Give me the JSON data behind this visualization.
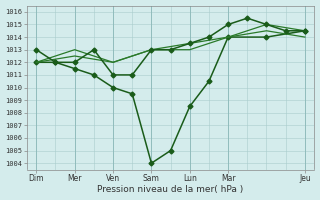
{
  "xlabel": "Pression niveau de la mer( hPa )",
  "background_color": "#d4ecec",
  "grid_color": "#aacccc",
  "grid_color_major": "#8ab8b8",
  "ylim": [
    1003.5,
    1016.5
  ],
  "yticks": [
    1004,
    1005,
    1006,
    1007,
    1008,
    1009,
    1010,
    1011,
    1012,
    1013,
    1014,
    1015,
    1016
  ],
  "day_labels": [
    "Dim",
    "Mer",
    "Ven",
    "Sam",
    "Lun",
    "Mar",
    "Jeu"
  ],
  "day_positions": [
    0,
    2,
    4,
    6,
    8,
    10,
    14
  ],
  "vline_major_positions": [
    0,
    2,
    4,
    6,
    8,
    10,
    14
  ],
  "xlim": [
    -0.5,
    14.5
  ],
  "series": [
    {
      "x": [
        0,
        1,
        2,
        3,
        4,
        5,
        6,
        7,
        8,
        9,
        10,
        12,
        14
      ],
      "y": [
        1012,
        1012,
        1011.5,
        1011,
        1010,
        1009.5,
        1004,
        1005,
        1008.5,
        1010.5,
        1014,
        1014,
        1014.5
      ],
      "color": "#1a5c1a",
      "marker": "D",
      "markersize": 2.5,
      "linewidth": 1.1
    },
    {
      "x": [
        0,
        2,
        4,
        6,
        8,
        10,
        12,
        14
      ],
      "y": [
        1012,
        1013,
        1012,
        1013,
        1013.5,
        1014,
        1015,
        1014.5
      ],
      "color": "#2a7a2a",
      "marker": null,
      "markersize": 0,
      "linewidth": 0.9
    },
    {
      "x": [
        0,
        2,
        4,
        6,
        8,
        10,
        12,
        14
      ],
      "y": [
        1012,
        1012.5,
        1012,
        1013,
        1013,
        1014,
        1014.5,
        1014
      ],
      "color": "#2a7a2a",
      "marker": null,
      "markersize": 0,
      "linewidth": 0.9
    },
    {
      "x": [
        0,
        1,
        2,
        3,
        4,
        5,
        6,
        7,
        8,
        9,
        10,
        11,
        12,
        13,
        14
      ],
      "y": [
        1013,
        1012,
        1012,
        1013,
        1011,
        1011,
        1013,
        1013,
        1013.5,
        1014,
        1015,
        1015.5,
        1015,
        1014.5,
        1014.5
      ],
      "color": "#1a5c1a",
      "marker": "D",
      "markersize": 2.5,
      "linewidth": 1.1
    }
  ]
}
